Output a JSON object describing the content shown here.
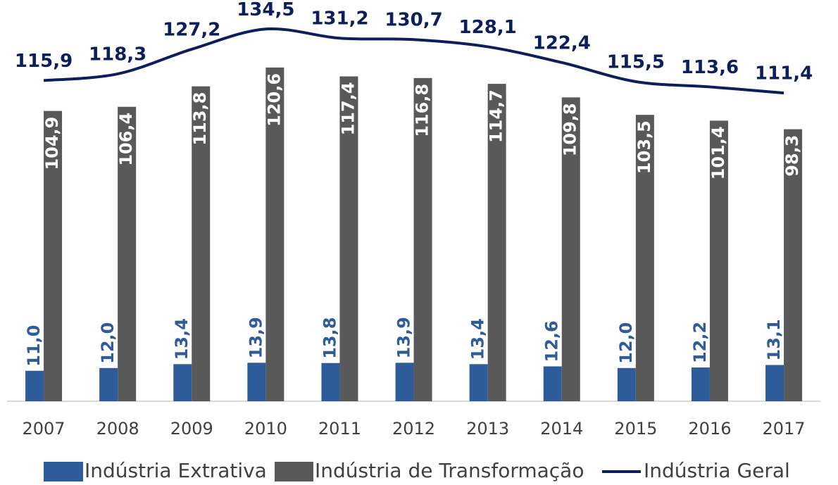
{
  "chart_data": {
    "type": "bar-line",
    "categories": [
      "2007",
      "2008",
      "2009",
      "2010",
      "2011",
      "2012",
      "2013",
      "2014",
      "2015",
      "2016",
      "2017"
    ],
    "ylim": [
      0,
      145
    ],
    "series": [
      {
        "name": "Indústria Extrativa",
        "type": "bar",
        "color": "#2e5c9a",
        "values": [
          11.0,
          12.0,
          13.4,
          13.9,
          13.8,
          13.9,
          13.4,
          12.6,
          12.0,
          12.2,
          13.1
        ],
        "value_labels": [
          "11,0",
          "12,0",
          "13,4",
          "13,9",
          "13,8",
          "13,9",
          "13,4",
          "12,6",
          "12,0",
          "12,2",
          "13,1"
        ]
      },
      {
        "name": "Indústria de Transformação",
        "type": "bar",
        "color": "#595959",
        "values": [
          104.9,
          106.4,
          113.8,
          120.6,
          117.4,
          116.8,
          114.7,
          109.8,
          103.5,
          101.4,
          98.3
        ],
        "value_labels": [
          "104,9",
          "106,4",
          "113,8",
          "120,6",
          "117,4",
          "116,8",
          "114,7",
          "109,8",
          "103,5",
          "101,4",
          "98,3"
        ]
      },
      {
        "name": "Indústria Geral",
        "type": "line",
        "color": "#0a1f5c",
        "values": [
          115.9,
          118.3,
          127.2,
          134.5,
          131.2,
          130.7,
          128.1,
          122.4,
          115.5,
          113.6,
          111.4
        ],
        "value_labels": [
          "115,9",
          "118,3",
          "127,2",
          "134,5",
          "131,2",
          "130,7",
          "128,1",
          "122,4",
          "115,5",
          "113,6",
          "111,4"
        ]
      }
    ]
  }
}
